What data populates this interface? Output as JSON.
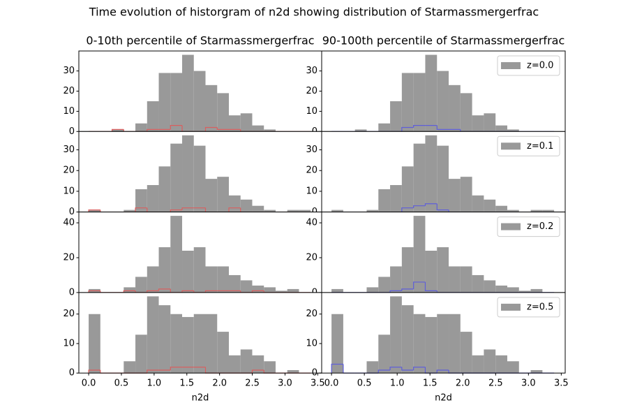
{
  "title": "Time evolution of historgram of n2d showing distribution of Starmassmergerfrac",
  "chart_data": [
    {
      "type": "histogram",
      "title": "0-10th percentile of Starmassmergerfrac",
      "bins": [
        0,
        0.1785,
        0.357,
        0.5355,
        0.714,
        0.8925,
        1.071,
        1.2495,
        1.428,
        1.6065,
        1.785,
        1.9635,
        2.142,
        2.3205,
        2.499,
        2.6775,
        2.856,
        3.0345,
        3.213,
        3.3915
      ],
      "xlim": [
        -0.15,
        3.56
      ],
      "ylim": [
        0,
        39.9
      ],
      "yticks": [
        0,
        10,
        20,
        30
      ],
      "series": [
        {
          "color": "#999999",
          "style": "bar",
          "values": [
            0,
            0,
            1,
            0,
            4,
            15,
            29,
            29,
            38,
            30,
            23,
            19,
            8,
            9,
            3,
            1,
            0,
            0,
            0
          ]
        },
        {
          "color": "#d95f5f",
          "style": "step",
          "values": [
            0,
            0,
            1,
            0,
            0,
            1,
            1,
            3,
            0,
            0,
            2,
            1,
            1,
            0,
            0,
            0,
            0,
            0,
            0
          ]
        }
      ]
    },
    {
      "type": "histogram",
      "title": "90-100th percentile of Starmassmergerfrac",
      "bins": [
        0,
        0.1785,
        0.357,
        0.5355,
        0.714,
        0.8925,
        1.071,
        1.2495,
        1.428,
        1.6065,
        1.785,
        1.9635,
        2.142,
        2.3205,
        2.499,
        2.6775,
        2.856,
        3.0345,
        3.213,
        3.3915
      ],
      "xlim": [
        -0.15,
        3.56
      ],
      "ylim": [
        0,
        39.9
      ],
      "yticks": [
        0,
        10,
        20,
        30
      ],
      "legend": "upper right",
      "series": [
        {
          "name": "z=0.0",
          "color": "#999999",
          "style": "bar",
          "values": [
            0,
            0,
            1,
            0,
            4,
            15,
            29,
            29,
            38,
            30,
            23,
            19,
            8,
            9,
            3,
            1,
            0,
            0,
            0
          ]
        },
        {
          "color": "#5f5fd9",
          "style": "step",
          "values": [
            0,
            0,
            0,
            0,
            0,
            0,
            2,
            3,
            3,
            1,
            1,
            0,
            0,
            0,
            0,
            0,
            0,
            0,
            0
          ]
        }
      ]
    },
    {
      "type": "histogram",
      "bins": [
        0,
        0.1785,
        0.357,
        0.5355,
        0.714,
        0.8925,
        1.071,
        1.2495,
        1.428,
        1.6065,
        1.785,
        1.9635,
        2.142,
        2.3205,
        2.499,
        2.6775,
        2.856,
        3.0345,
        3.213,
        3.3915
      ],
      "xlim": [
        -0.15,
        3.56
      ],
      "ylim": [
        0,
        38.85
      ],
      "yticks": [
        0,
        10,
        20,
        30
      ],
      "series": [
        {
          "color": "#999999",
          "style": "bar",
          "values": [
            1,
            0,
            0,
            1,
            11,
            13,
            22,
            33,
            37,
            32,
            16,
            17,
            8,
            6,
            3,
            1,
            0,
            1,
            1
          ]
        },
        {
          "color": "#d95f5f",
          "style": "step",
          "values": [
            1,
            0,
            0,
            0,
            2,
            0,
            0,
            1,
            2,
            2,
            0,
            0,
            2,
            0,
            0,
            0,
            0,
            0,
            0
          ]
        }
      ]
    },
    {
      "type": "histogram",
      "bins": [
        0,
        0.1785,
        0.357,
        0.5355,
        0.714,
        0.8925,
        1.071,
        1.2495,
        1.428,
        1.6065,
        1.785,
        1.9635,
        2.142,
        2.3205,
        2.499,
        2.6775,
        2.856,
        3.0345,
        3.213,
        3.3915
      ],
      "xlim": [
        -0.15,
        3.56
      ],
      "ylim": [
        0,
        38.85
      ],
      "yticks": [
        0,
        10,
        20,
        30
      ],
      "legend": "upper right",
      "series": [
        {
          "name": "z=0.1",
          "color": "#999999",
          "style": "bar",
          "values": [
            1,
            0,
            0,
            1,
            11,
            13,
            22,
            33,
            37,
            32,
            16,
            17,
            8,
            6,
            3,
            1,
            0,
            1,
            1
          ]
        },
        {
          "color": "#5f5fd9",
          "style": "step",
          "values": [
            0,
            0,
            0,
            0,
            0,
            0,
            2,
            3,
            4,
            1,
            0,
            0,
            0,
            0,
            0,
            0,
            0,
            0,
            0
          ]
        }
      ]
    },
    {
      "type": "histogram",
      "bins": [
        0,
        0.1785,
        0.357,
        0.5355,
        0.714,
        0.8925,
        1.071,
        1.2495,
        1.428,
        1.6065,
        1.785,
        1.9635,
        2.142,
        2.3205,
        2.499,
        2.6775,
        2.856,
        3.0345,
        3.213,
        3.3915
      ],
      "xlim": [
        -0.15,
        3.56
      ],
      "ylim": [
        0,
        46.2
      ],
      "yticks": [
        0,
        20,
        40
      ],
      "series": [
        {
          "color": "#999999",
          "style": "bar",
          "values": [
            2,
            0,
            0,
            3,
            9,
            15,
            26,
            44,
            24,
            26,
            15,
            15,
            10,
            7,
            4,
            3,
            1,
            2,
            0
          ]
        },
        {
          "color": "#d95f5f",
          "style": "step",
          "values": [
            1,
            0,
            0,
            1,
            0,
            1,
            2,
            0,
            1,
            0,
            1,
            1,
            1,
            0,
            1,
            0,
            0,
            0,
            0
          ]
        }
      ]
    },
    {
      "type": "histogram",
      "bins": [
        0,
        0.1785,
        0.357,
        0.5355,
        0.714,
        0.8925,
        1.071,
        1.2495,
        1.428,
        1.6065,
        1.785,
        1.9635,
        2.142,
        2.3205,
        2.499,
        2.6775,
        2.856,
        3.0345,
        3.213,
        3.3915
      ],
      "xlim": [
        -0.15,
        3.56
      ],
      "ylim": [
        0,
        46.2
      ],
      "yticks": [
        0,
        20,
        40
      ],
      "legend": "upper right",
      "series": [
        {
          "name": "z=0.2",
          "color": "#999999",
          "style": "bar",
          "values": [
            2,
            0,
            0,
            3,
            9,
            15,
            26,
            44,
            24,
            26,
            15,
            15,
            10,
            7,
            4,
            3,
            1,
            2,
            0
          ]
        },
        {
          "color": "#5f5fd9",
          "style": "step",
          "values": [
            0,
            0,
            0,
            0,
            0,
            1,
            2,
            6,
            1,
            0,
            0,
            0,
            0,
            0,
            0,
            0,
            0,
            0,
            0
          ]
        }
      ]
    },
    {
      "type": "histogram",
      "xlabel": "n2d",
      "bins": [
        0,
        0.1785,
        0.357,
        0.5355,
        0.714,
        0.8925,
        1.071,
        1.2495,
        1.428,
        1.6065,
        1.785,
        1.9635,
        2.142,
        2.3205,
        2.499,
        2.6775,
        2.856,
        3.0345,
        3.213,
        3.3915
      ],
      "xlim": [
        -0.15,
        3.56
      ],
      "ylim": [
        0,
        27.3
      ],
      "yticks": [
        0,
        10,
        20
      ],
      "xticks": [
        {
          "value": 0,
          "label": "0.0"
        },
        {
          "value": 0.5,
          "label": "0.5"
        },
        {
          "value": 1,
          "label": "1.0"
        },
        {
          "value": 1.5,
          "label": "1.5"
        },
        {
          "value": 2,
          "label": "2.0"
        },
        {
          "value": 2.5,
          "label": "2.5"
        },
        {
          "value": 3,
          "label": "3.0"
        },
        {
          "value": 3.5,
          "label": "3.5"
        }
      ],
      "series": [
        {
          "color": "#999999",
          "style": "bar",
          "values": [
            20,
            0,
            0,
            4,
            13,
            26,
            23,
            20,
            19,
            20,
            20,
            14,
            6,
            8,
            6,
            4,
            0,
            1,
            0
          ]
        },
        {
          "color": "#d95f5f",
          "style": "step",
          "values": [
            1,
            0,
            0,
            0,
            0,
            1,
            1,
            2,
            2,
            2,
            0,
            0,
            0,
            0,
            1,
            0,
            0,
            0,
            0
          ]
        }
      ]
    },
    {
      "type": "histogram",
      "xlabel": "n2d",
      "bins": [
        0,
        0.1785,
        0.357,
        0.5355,
        0.714,
        0.8925,
        1.071,
        1.2495,
        1.428,
        1.6065,
        1.785,
        1.9635,
        2.142,
        2.3205,
        2.499,
        2.6775,
        2.856,
        3.0345,
        3.213,
        3.3915
      ],
      "xlim": [
        -0.15,
        3.56
      ],
      "ylim": [
        0,
        27.3
      ],
      "yticks": [
        0,
        10,
        20
      ],
      "legend": "upper right",
      "xticks": [
        {
          "value": 0,
          "label": "0.0"
        },
        {
          "value": 0.5,
          "label": "0.5"
        },
        {
          "value": 1,
          "label": "1.0"
        },
        {
          "value": 1.5,
          "label": "1.5"
        },
        {
          "value": 2,
          "label": "2.0"
        },
        {
          "value": 2.5,
          "label": "2.5"
        },
        {
          "value": 3,
          "label": "3.0"
        },
        {
          "value": 3.5,
          "label": "3.5"
        }
      ],
      "series": [
        {
          "name": "z=0.5",
          "color": "#999999",
          "style": "bar",
          "values": [
            20,
            0,
            0,
            4,
            13,
            26,
            23,
            20,
            19,
            20,
            20,
            14,
            6,
            8,
            6,
            4,
            0,
            1,
            0
          ]
        },
        {
          "color": "#5f5fd9",
          "style": "step",
          "values": [
            3,
            0,
            0,
            0,
            1,
            2,
            1,
            2,
            0,
            1,
            0,
            0,
            0,
            0,
            0,
            0,
            0,
            0,
            0
          ]
        }
      ]
    }
  ]
}
